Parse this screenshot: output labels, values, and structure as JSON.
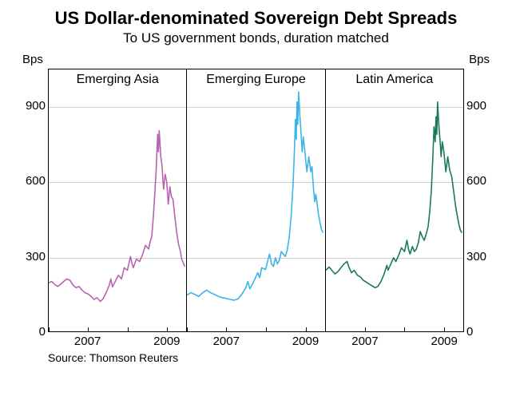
{
  "title": "US Dollar-denominated Sovereign Debt Spreads",
  "subtitle": "To US government bonds, duration matched",
  "source": "Source: Thomson Reuters",
  "y_axis": {
    "label_left": "Bps",
    "label_right": "Bps",
    "min": 0,
    "max": 1050,
    "ticks": [
      0,
      300,
      600,
      900
    ],
    "grid_color": "#d0d0d0"
  },
  "x_axis": {
    "min": 2006.0,
    "max": 2009.5,
    "tick_labels": [
      "2007",
      "2009"
    ],
    "tick_positions": [
      2007.0,
      2009.0
    ],
    "minor_ticks": [
      2006.0,
      2007.0,
      2008.0,
      2009.0
    ]
  },
  "layout": {
    "title_fontsize": 22,
    "subtitle_fontsize": 17,
    "axis_fontsize": 15,
    "panel_title_fontsize": 16,
    "background_color": "#ffffff",
    "border_color": "#000000",
    "line_width": 1.6
  },
  "panels": [
    {
      "title": "Emerging Asia",
      "color": "#b963b0",
      "series": [
        [
          2006.0,
          195
        ],
        [
          2006.08,
          200
        ],
        [
          2006.15,
          188
        ],
        [
          2006.23,
          180
        ],
        [
          2006.31,
          190
        ],
        [
          2006.38,
          200
        ],
        [
          2006.46,
          210
        ],
        [
          2006.54,
          205
        ],
        [
          2006.62,
          185
        ],
        [
          2006.69,
          175
        ],
        [
          2006.77,
          180
        ],
        [
          2006.85,
          165
        ],
        [
          2006.92,
          155
        ],
        [
          2007.0,
          150
        ],
        [
          2007.08,
          140
        ],
        [
          2007.15,
          128
        ],
        [
          2007.23,
          135
        ],
        [
          2007.31,
          120
        ],
        [
          2007.38,
          130
        ],
        [
          2007.46,
          155
        ],
        [
          2007.54,
          185
        ],
        [
          2007.58,
          210
        ],
        [
          2007.62,
          178
        ],
        [
          2007.69,
          200
        ],
        [
          2007.77,
          225
        ],
        [
          2007.85,
          210
        ],
        [
          2007.92,
          255
        ],
        [
          2008.0,
          245
        ],
        [
          2008.08,
          300
        ],
        [
          2008.12,
          270
        ],
        [
          2008.15,
          255
        ],
        [
          2008.23,
          290
        ],
        [
          2008.31,
          280
        ],
        [
          2008.38,
          305
        ],
        [
          2008.46,
          345
        ],
        [
          2008.54,
          330
        ],
        [
          2008.58,
          360
        ],
        [
          2008.62,
          380
        ],
        [
          2008.66,
          460
        ],
        [
          2008.7,
          560
        ],
        [
          2008.73,
          640
        ],
        [
          2008.77,
          790
        ],
        [
          2008.79,
          720
        ],
        [
          2008.81,
          805
        ],
        [
          2008.85,
          700
        ],
        [
          2008.88,
          665
        ],
        [
          2008.92,
          570
        ],
        [
          2008.96,
          630
        ],
        [
          2009.0,
          600
        ],
        [
          2009.04,
          510
        ],
        [
          2009.08,
          580
        ],
        [
          2009.12,
          540
        ],
        [
          2009.16,
          530
        ],
        [
          2009.2,
          470
        ],
        [
          2009.25,
          400
        ],
        [
          2009.3,
          350
        ],
        [
          2009.35,
          320
        ],
        [
          2009.38,
          290
        ],
        [
          2009.42,
          275
        ],
        [
          2009.46,
          260
        ]
      ]
    },
    {
      "title": "Emerging Europe",
      "color": "#3db4e8",
      "series": [
        [
          2006.0,
          145
        ],
        [
          2006.1,
          155
        ],
        [
          2006.2,
          148
        ],
        [
          2006.3,
          140
        ],
        [
          2006.4,
          155
        ],
        [
          2006.5,
          165
        ],
        [
          2006.6,
          155
        ],
        [
          2006.7,
          148
        ],
        [
          2006.8,
          140
        ],
        [
          2006.9,
          135
        ],
        [
          2007.0,
          132
        ],
        [
          2007.1,
          128
        ],
        [
          2007.2,
          125
        ],
        [
          2007.3,
          130
        ],
        [
          2007.4,
          150
        ],
        [
          2007.5,
          175
        ],
        [
          2007.55,
          200
        ],
        [
          2007.6,
          170
        ],
        [
          2007.7,
          200
        ],
        [
          2007.8,
          235
        ],
        [
          2007.85,
          215
        ],
        [
          2007.9,
          255
        ],
        [
          2008.0,
          248
        ],
        [
          2008.05,
          280
        ],
        [
          2008.1,
          310
        ],
        [
          2008.15,
          270
        ],
        [
          2008.2,
          260
        ],
        [
          2008.25,
          295
        ],
        [
          2008.3,
          270
        ],
        [
          2008.35,
          285
        ],
        [
          2008.4,
          320
        ],
        [
          2008.45,
          310
        ],
        [
          2008.5,
          300
        ],
        [
          2008.55,
          325
        ],
        [
          2008.6,
          375
        ],
        [
          2008.65,
          460
        ],
        [
          2008.7,
          590
        ],
        [
          2008.73,
          710
        ],
        [
          2008.76,
          850
        ],
        [
          2008.78,
          770
        ],
        [
          2008.8,
          920
        ],
        [
          2008.82,
          830
        ],
        [
          2008.84,
          960
        ],
        [
          2008.87,
          870
        ],
        [
          2008.9,
          800
        ],
        [
          2008.93,
          720
        ],
        [
          2008.96,
          780
        ],
        [
          2009.0,
          720
        ],
        [
          2009.05,
          640
        ],
        [
          2009.1,
          700
        ],
        [
          2009.15,
          640
        ],
        [
          2009.18,
          660
        ],
        [
          2009.22,
          570
        ],
        [
          2009.25,
          520
        ],
        [
          2009.28,
          550
        ],
        [
          2009.32,
          500
        ],
        [
          2009.35,
          465
        ],
        [
          2009.38,
          440
        ],
        [
          2009.42,
          410
        ],
        [
          2009.46,
          395
        ]
      ]
    },
    {
      "title": "Latin America",
      "color": "#1a7a54",
      "series": [
        [
          2006.0,
          245
        ],
        [
          2006.08,
          258
        ],
        [
          2006.15,
          245
        ],
        [
          2006.23,
          230
        ],
        [
          2006.31,
          240
        ],
        [
          2006.38,
          255
        ],
        [
          2006.46,
          270
        ],
        [
          2006.54,
          280
        ],
        [
          2006.58,
          260
        ],
        [
          2006.65,
          235
        ],
        [
          2006.72,
          245
        ],
        [
          2006.8,
          225
        ],
        [
          2006.88,
          218
        ],
        [
          2006.95,
          205
        ],
        [
          2007.02,
          198
        ],
        [
          2007.1,
          190
        ],
        [
          2007.18,
          182
        ],
        [
          2007.25,
          175
        ],
        [
          2007.32,
          180
        ],
        [
          2007.4,
          200
        ],
        [
          2007.48,
          230
        ],
        [
          2007.55,
          265
        ],
        [
          2007.58,
          245
        ],
        [
          2007.65,
          270
        ],
        [
          2007.72,
          295
        ],
        [
          2007.78,
          280
        ],
        [
          2007.85,
          305
        ],
        [
          2007.92,
          335
        ],
        [
          2008.0,
          320
        ],
        [
          2008.06,
          365
        ],
        [
          2008.1,
          330
        ],
        [
          2008.14,
          310
        ],
        [
          2008.2,
          340
        ],
        [
          2008.25,
          320
        ],
        [
          2008.3,
          330
        ],
        [
          2008.35,
          355
        ],
        [
          2008.4,
          400
        ],
        [
          2008.45,
          380
        ],
        [
          2008.5,
          365
        ],
        [
          2008.55,
          390
        ],
        [
          2008.6,
          420
        ],
        [
          2008.64,
          480
        ],
        [
          2008.68,
          560
        ],
        [
          2008.72,
          700
        ],
        [
          2008.75,
          820
        ],
        [
          2008.78,
          760
        ],
        [
          2008.8,
          860
        ],
        [
          2008.82,
          790
        ],
        [
          2008.84,
          920
        ],
        [
          2008.87,
          830
        ],
        [
          2008.9,
          770
        ],
        [
          2008.93,
          700
        ],
        [
          2008.96,
          760
        ],
        [
          2009.0,
          720
        ],
        [
          2009.05,
          640
        ],
        [
          2009.1,
          700
        ],
        [
          2009.15,
          645
        ],
        [
          2009.2,
          620
        ],
        [
          2009.25,
          560
        ],
        [
          2009.3,
          500
        ],
        [
          2009.35,
          455
        ],
        [
          2009.38,
          430
        ],
        [
          2009.42,
          405
        ],
        [
          2009.46,
          395
        ]
      ]
    }
  ]
}
